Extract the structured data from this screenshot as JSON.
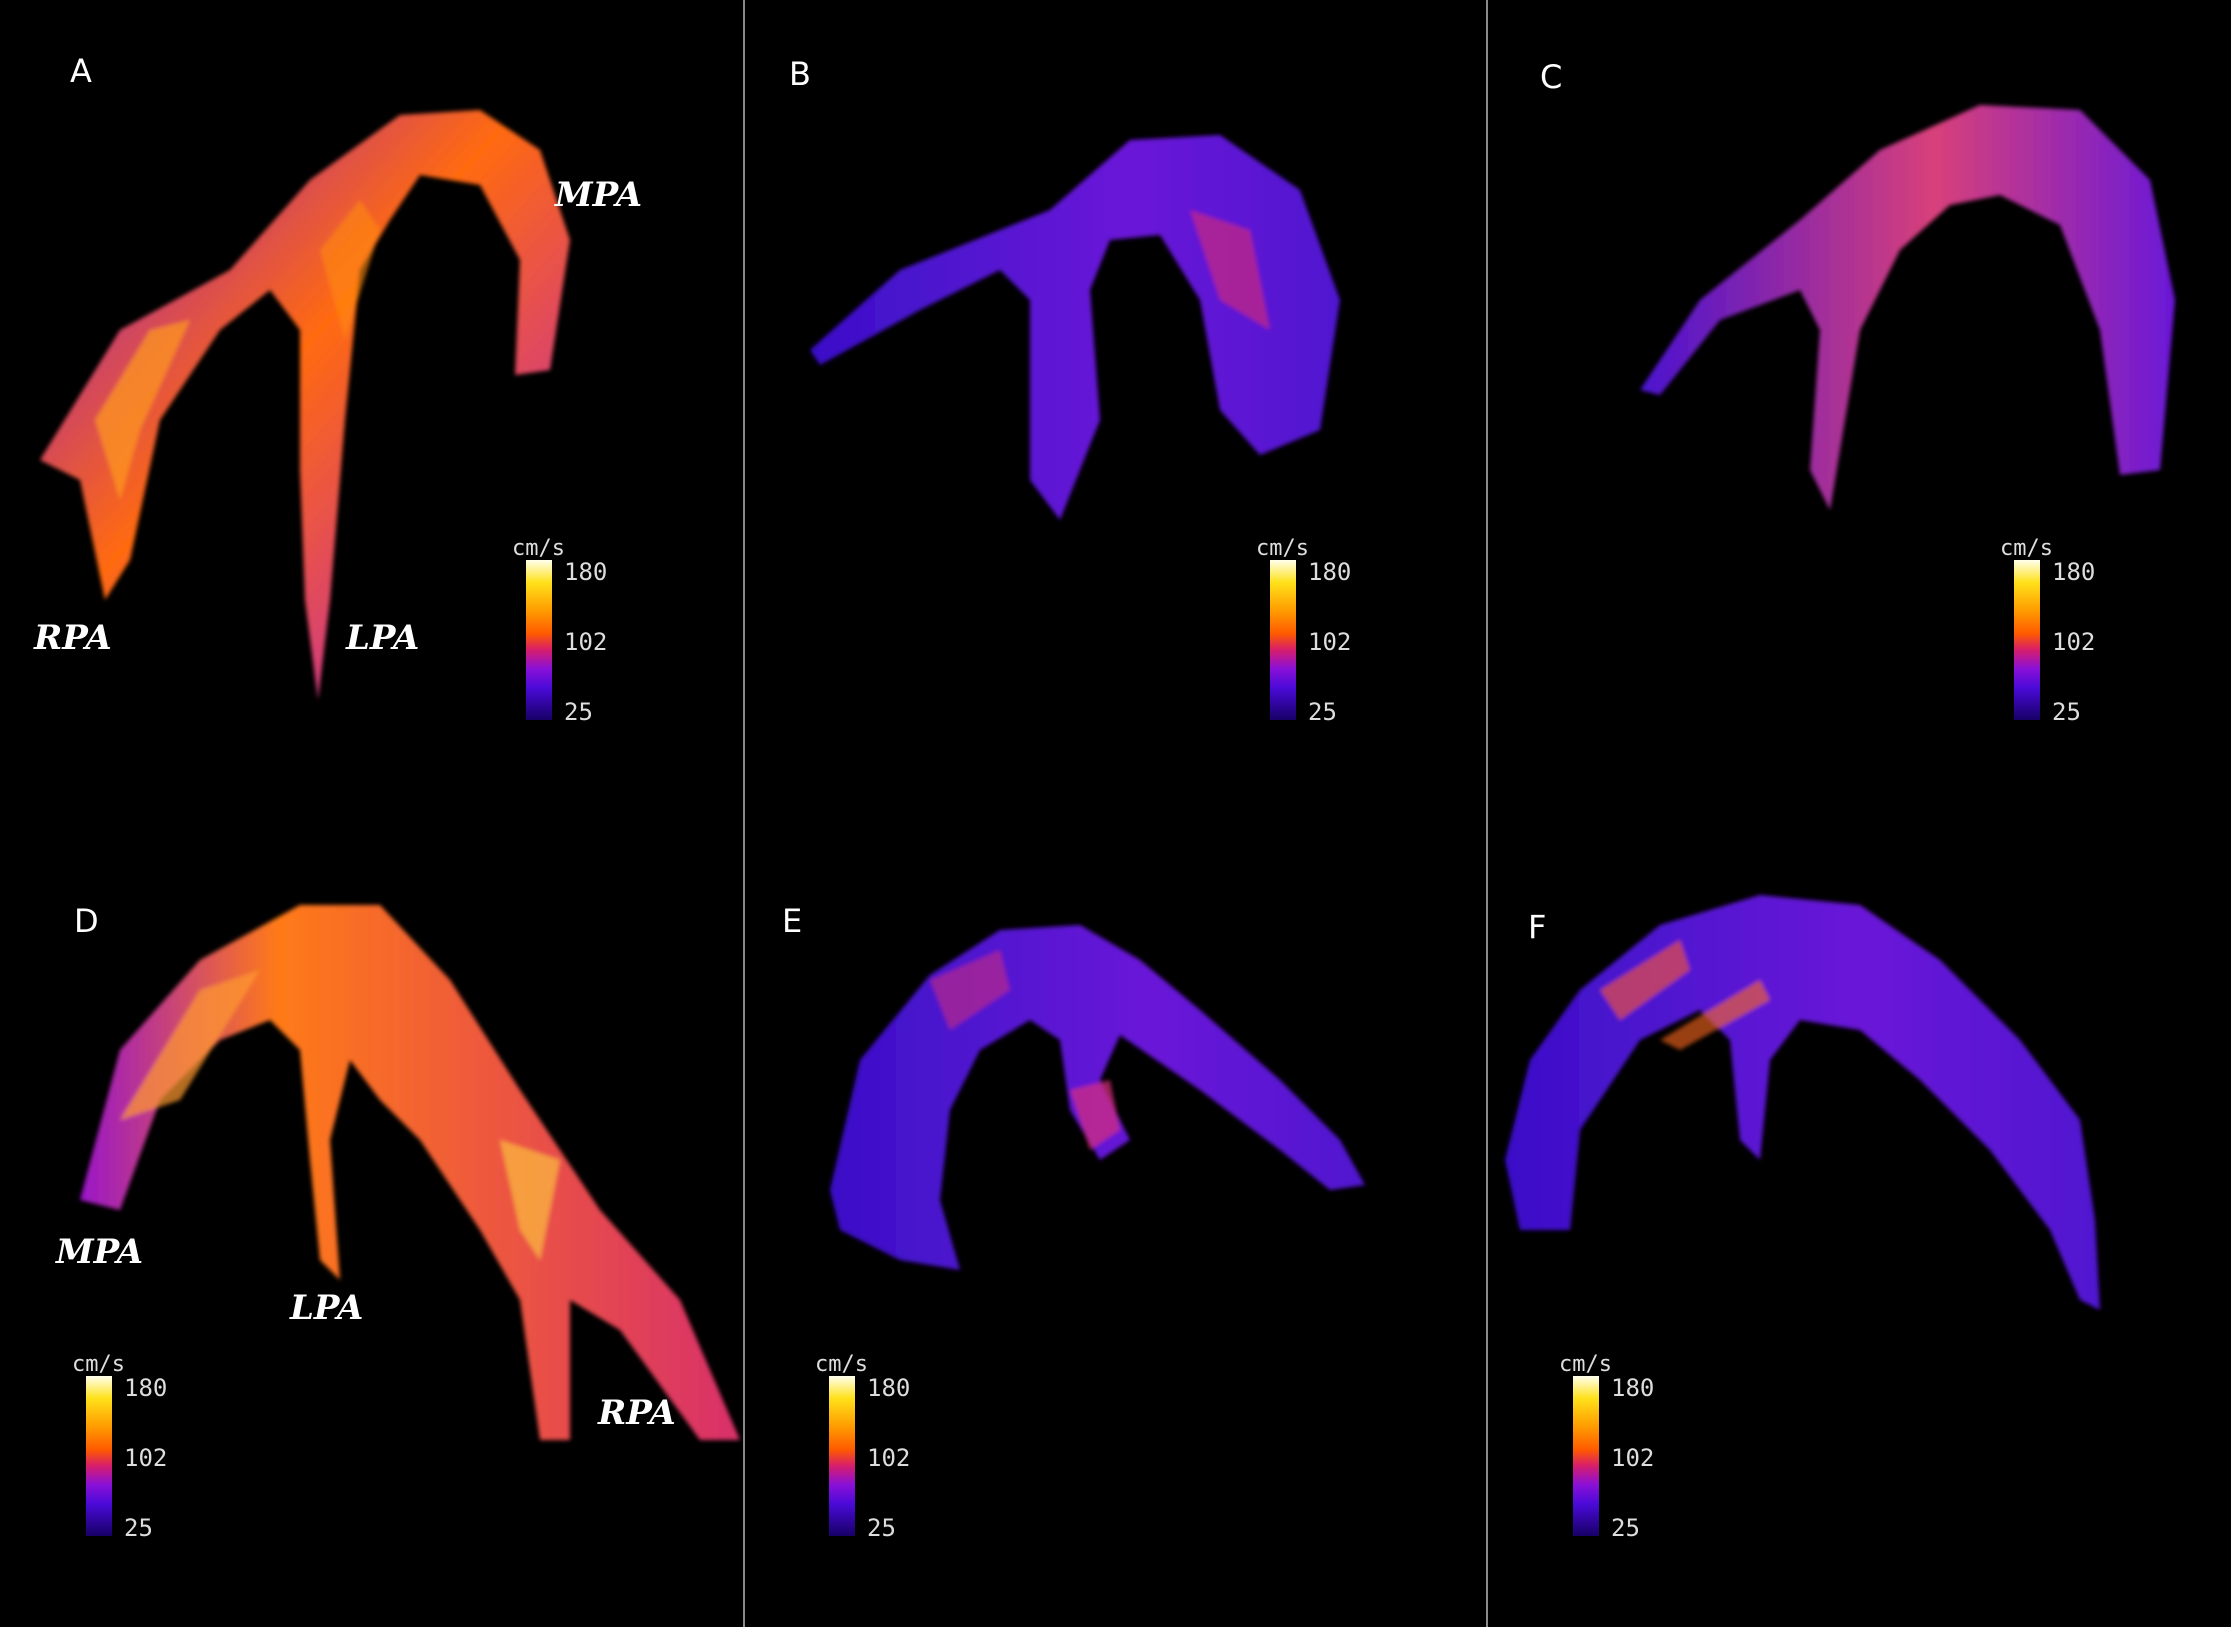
{
  "panels": {
    "A": {
      "letter": "A",
      "labels": {
        "mpa": "MPA",
        "rpa": "RPA",
        "lpa": "LPA"
      }
    },
    "B": {
      "letter": "B"
    },
    "C": {
      "letter": "C"
    },
    "D": {
      "letter": "D",
      "labels": {
        "mpa": "MPA",
        "lpa": "LPA",
        "rpa": "RPA"
      }
    },
    "E": {
      "letter": "E"
    },
    "F": {
      "letter": "F"
    }
  },
  "colorbar": {
    "unit": "cm/s",
    "max": "180",
    "mid": "102",
    "min": "25"
  },
  "colors": {
    "background": "#000000",
    "divider": "#8a8a8a",
    "low_velocity": "#4a0ad8",
    "mid_velocity": "#ff5a00",
    "high_velocity": "#ffe11a"
  }
}
